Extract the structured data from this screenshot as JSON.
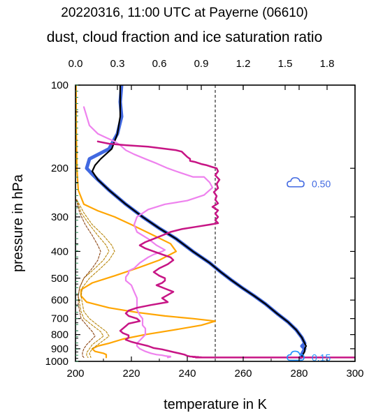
{
  "chart_data": {
    "type": "line",
    "title": "20220316, 11:00 UTC at Payerne (06610)",
    "subtitle": "dust, cloud fraction and ice saturation ratio",
    "xlabel": "temperature in K",
    "ylabel": "pressure in hPa",
    "xlim": [
      200,
      300
    ],
    "ylim": [
      1000,
      100
    ],
    "x_ticks": [
      "200",
      "220",
      "240",
      "260",
      "280",
      "300"
    ],
    "y_ticks": [
      "100",
      "200",
      "300",
      "400",
      "500",
      "600",
      "700",
      "800",
      "900",
      "1000"
    ],
    "top_axis": {
      "lim": [
        0,
        2.0
      ],
      "ticks": [
        "0.0",
        "0.3",
        "0.6",
        "0.9",
        "1.2",
        "1.5",
        "1.8"
      ]
    },
    "reference_line_x": 250,
    "annotations": [
      {
        "text": "0.50",
        "icon": "cloud-icon",
        "color": "#4169e1",
        "x": 281.5,
        "p": 228
      },
      {
        "text": "0.15",
        "icon": "cloud-icon",
        "color": "#1e90ff",
        "x": 281.5,
        "p": 968
      }
    ],
    "series": [
      {
        "color": "#4169e1",
        "width": 5,
        "style": "solid",
        "x": [
          216.5,
          216,
          216.5,
          215,
          212,
          205,
          204,
          206,
          208,
          212,
          218,
          224,
          230,
          236,
          242,
          248,
          252,
          256,
          260,
          264,
          268,
          272,
          276,
          279,
          281,
          282,
          281,
          282,
          281.5,
          281,
          281,
          280.5
        ],
        "y": [
          100,
          115,
          130,
          150,
          170,
          185,
          200,
          210,
          220,
          240,
          270,
          300,
          330,
          360,
          400,
          440,
          475,
          510,
          545,
          580,
          620,
          670,
          720,
          770,
          820,
          860,
          880,
          900,
          920,
          940,
          960,
          968
        ]
      },
      {
        "color": "#000000",
        "width": 2.2,
        "style": "solid",
        "x": [
          216,
          216,
          215,
          213,
          209,
          207,
          206,
          208,
          212,
          218,
          224,
          230,
          236,
          242,
          248,
          252,
          256,
          260,
          264,
          268,
          272,
          276,
          279,
          281,
          282,
          282.5,
          282,
          282,
          281.5,
          281,
          281
        ],
        "y": [
          100,
          130,
          150,
          170,
          185,
          195,
          205,
          220,
          240,
          270,
          300,
          330,
          360,
          400,
          440,
          475,
          510,
          545,
          580,
          620,
          670,
          720,
          770,
          820,
          860,
          880,
          900,
          920,
          940,
          960,
          968
        ]
      },
      {
        "color": "#ffa500",
        "width": 2.2,
        "style": "solid",
        "x": [
          200.2,
          200.3,
          200.5,
          201,
          203,
          208,
          214,
          220,
          228,
          234,
          236,
          230,
          222,
          214,
          206,
          202,
          202,
          204,
          212,
          222,
          232,
          242,
          250,
          245,
          235,
          225,
          217,
          212,
          208,
          206,
          207,
          210,
          211,
          211,
          211
        ],
        "y": [
          100,
          150,
          200,
          240,
          270,
          285,
          300,
          320,
          350,
          375,
          400,
          430,
          460,
          490,
          520,
          550,
          580,
          610,
          640,
          665,
          685,
          700,
          715,
          740,
          770,
          800,
          830,
          860,
          880,
          900,
          920,
          935,
          945,
          960,
          968
        ]
      },
      {
        "color": "#b8860b",
        "width": 1.1,
        "style": "dashed",
        "x": [
          200.5,
          202,
          205,
          208,
          211,
          212,
          210,
          207,
          203,
          201.5,
          201,
          201.5,
          202,
          203,
          206,
          209,
          210,
          208,
          206,
          205,
          204,
          204,
          204.5
        ],
        "y": [
          260,
          290,
          320,
          350,
          380,
          400,
          430,
          460,
          500,
          540,
          580,
          620,
          660,
          700,
          740,
          780,
          810,
          840,
          870,
          900,
          930,
          955,
          968
        ]
      },
      {
        "color": "#b8860b",
        "width": 1.1,
        "style": "dashed",
        "x": [
          200.5,
          203,
          206,
          210,
          213,
          214,
          212,
          209,
          205,
          202.5,
          202,
          202.5,
          203,
          205,
          208,
          211,
          212,
          210,
          208,
          206,
          205,
          205.5
        ],
        "y": [
          260,
          290,
          320,
          350,
          380,
          400,
          430,
          460,
          500,
          540,
          580,
          620,
          660,
          700,
          740,
          780,
          810,
          840,
          870,
          900,
          935,
          968
        ]
      },
      {
        "color": "#8b4513",
        "width": 1.1,
        "style": "dashed",
        "x": [
          200.3,
          201.5,
          203.5,
          206,
          208,
          209,
          208,
          206,
          203,
          201.5,
          201,
          201,
          201.5,
          202,
          204,
          206,
          207,
          205.5,
          204,
          203,
          202.5,
          202.5,
          203
        ],
        "y": [
          260,
          290,
          320,
          350,
          380,
          400,
          430,
          460,
          500,
          540,
          580,
          620,
          660,
          700,
          740,
          780,
          810,
          840,
          870,
          900,
          930,
          955,
          968
        ]
      },
      {
        "color": "#ee82ee",
        "width": 2.2,
        "style": "solid",
        "x": [
          203,
          205,
          208,
          211,
          214,
          216,
          218,
          221,
          225,
          229,
          233,
          236,
          239,
          242,
          246,
          248,
          249,
          246,
          240,
          232,
          226,
          222,
          221,
          222,
          226,
          229,
          232,
          231,
          228,
          226,
          223,
          221,
          219,
          219,
          218,
          218,
          220,
          221,
          222,
          222,
          222,
          223,
          224,
          224,
          224,
          225,
          225,
          225,
          224,
          223,
          222,
          222,
          223,
          225,
          227,
          229,
          231,
          232,
          233,
          234,
          234,
          233
        ],
        "y": [
          120,
          140,
          150,
          155,
          160,
          165,
          172,
          178,
          185,
          192,
          200,
          205,
          210,
          215,
          215,
          225,
          235,
          250,
          262,
          270,
          282,
          300,
          320,
          340,
          360,
          380,
          395,
          400,
          410,
          420,
          440,
          460,
          470,
          480,
          495,
          510,
          530,
          560,
          590,
          620,
          650,
          680,
          700,
          720,
          740,
          760,
          780,
          800,
          820,
          840,
          860,
          880,
          900,
          920,
          935,
          945,
          950,
          955,
          958,
          960,
          963,
          968
        ]
      },
      {
        "color": "#c71585",
        "width": 2.5,
        "style": "solid",
        "x": [
          208,
          212,
          218,
          226,
          232,
          236,
          238,
          239,
          240,
          241,
          241,
          243,
          245,
          247,
          249,
          250.5,
          251,
          250,
          251.5,
          250.5,
          251,
          249.5,
          250.5,
          250,
          251,
          249,
          251,
          250,
          251,
          250,
          251,
          248,
          243,
          238,
          234,
          231,
          228,
          225,
          223,
          225,
          228,
          231,
          234,
          235,
          233,
          230,
          228,
          230,
          232,
          232,
          231,
          229,
          232,
          235,
          233,
          231,
          233,
          227,
          222,
          219,
          218,
          219,
          222,
          223,
          219,
          218,
          217,
          216,
          217,
          219,
          219,
          218,
          220,
          223,
          226,
          228,
          231,
          233,
          235,
          237,
          239,
          240,
          241,
          242,
          243,
          242,
          244,
          244,
          243,
          245,
          245,
          243,
          300
        ],
        "y": [
          160,
          163,
          165,
          167,
          170,
          172,
          174,
          178,
          182,
          185,
          188,
          190,
          193,
          195,
          198,
          200,
          205,
          212,
          220,
          228,
          236,
          244,
          252,
          260,
          268,
          276,
          284,
          292,
          300,
          308,
          316,
          320,
          326,
          332,
          340,
          350,
          360,
          370,
          380,
          390,
          400,
          410,
          420,
          430,
          445,
          460,
          475,
          490,
          500,
          510,
          520,
          530,
          545,
          560,
          575,
          590,
          610,
          625,
          640,
          655,
          670,
          685,
          700,
          715,
          730,
          745,
          760,
          775,
          790,
          805,
          820,
          835,
          850,
          865,
          880,
          895,
          905,
          915,
          925,
          935,
          945,
          955,
          960,
          962,
          963,
          964,
          964,
          965,
          966,
          966,
          967,
          968,
          968
        ]
      }
    ]
  }
}
